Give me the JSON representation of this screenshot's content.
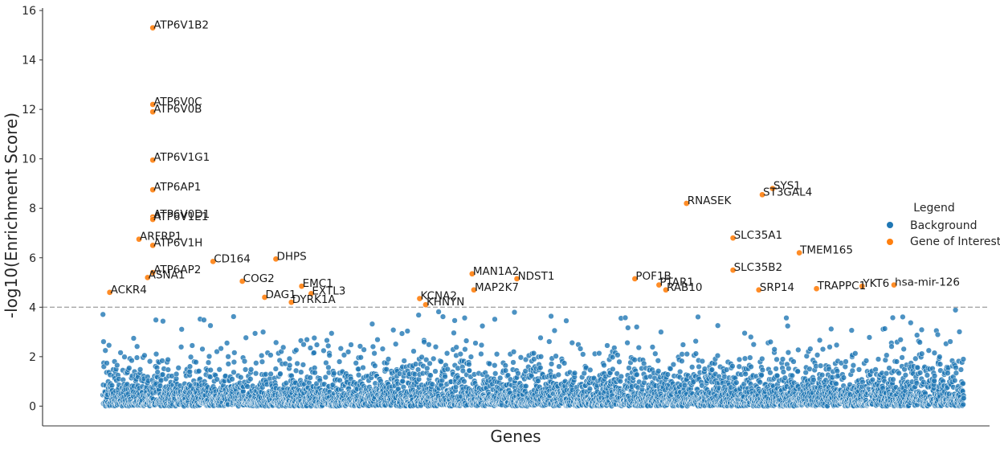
{
  "chart_data": {
    "type": "scatter",
    "title": "",
    "xlabel": "Genes",
    "ylabel": "-log10(Enrichment Score)",
    "ylim": [
      -0.8,
      16.1
    ],
    "xlim": [
      -0.07,
      1.03
    ],
    "yticks": [
      0,
      2,
      4,
      6,
      8,
      10,
      12,
      14,
      16
    ],
    "x_ticks_shown": false,
    "grid": false,
    "threshold": 4,
    "legend": {
      "title": "Legend",
      "placement": "right",
      "entries": [
        {
          "label": "Background",
          "color": "#1f77b4"
        },
        {
          "label": "Gene of Interest",
          "color": "#ff7f0e"
        }
      ]
    },
    "background": {
      "name": "Background",
      "color": "#1f77b4",
      "count_approx": 5000,
      "y_range": [
        0,
        4
      ],
      "x_range": [
        0,
        1
      ]
    },
    "series": [
      {
        "name": "Gene of Interest",
        "color": "#ff7f0e",
        "points": [
          {
            "label": "ATP6V1B2",
            "x": 0.058,
            "y": 15.3
          },
          {
            "label": "ATP6V0C",
            "x": 0.058,
            "y": 12.2
          },
          {
            "label": "ATP6V0B",
            "x": 0.058,
            "y": 11.9
          },
          {
            "label": "ATP6V1G1",
            "x": 0.058,
            "y": 9.95
          },
          {
            "label": "ATP6AP1",
            "x": 0.058,
            "y": 8.75
          },
          {
            "label": "ATP6V0D1",
            "x": 0.058,
            "y": 7.65
          },
          {
            "label": "ATP6V1E1",
            "x": 0.058,
            "y": 7.55
          },
          {
            "label": "ARFRP1",
            "x": 0.042,
            "y": 6.75
          },
          {
            "label": "ATP6V1H",
            "x": 0.058,
            "y": 6.5
          },
          {
            "label": "ATP6AP2",
            "x": 0.058,
            "y": 5.4
          },
          {
            "label": "ASNA1",
            "x": 0.052,
            "y": 5.2
          },
          {
            "label": "ACKR4",
            "x": 0.008,
            "y": 4.6
          },
          {
            "label": "CD164",
            "x": 0.128,
            "y": 5.85
          },
          {
            "label": "COG2",
            "x": 0.162,
            "y": 5.05
          },
          {
            "label": "DHPS",
            "x": 0.201,
            "y": 5.95
          },
          {
            "label": "DAG1",
            "x": 0.188,
            "y": 4.4
          },
          {
            "label": "EMC1",
            "x": 0.231,
            "y": 4.85
          },
          {
            "label": "EXTL3",
            "x": 0.242,
            "y": 4.55
          },
          {
            "label": "DYRK1A",
            "x": 0.219,
            "y": 4.2
          },
          {
            "label": "KCNA2",
            "x": 0.368,
            "y": 4.35
          },
          {
            "label": "KHNYN",
            "x": 0.375,
            "y": 4.1
          },
          {
            "label": "MAN1A2",
            "x": 0.429,
            "y": 5.35
          },
          {
            "label": "MAP2K7",
            "x": 0.431,
            "y": 4.7
          },
          {
            "label": "NDST1",
            "x": 0.481,
            "y": 5.15
          },
          {
            "label": "POF1B",
            "x": 0.618,
            "y": 5.15
          },
          {
            "label": "PTAR1",
            "x": 0.646,
            "y": 4.9
          },
          {
            "label": "RAB10",
            "x": 0.654,
            "y": 4.7
          },
          {
            "label": "RNASEK",
            "x": 0.678,
            "y": 8.2
          },
          {
            "label": "SYS1",
            "x": 0.778,
            "y": 8.8
          },
          {
            "label": "ST3GAL4",
            "x": 0.766,
            "y": 8.55
          },
          {
            "label": "SLC35A1",
            "x": 0.732,
            "y": 6.8
          },
          {
            "label": "SLC35B2",
            "x": 0.732,
            "y": 5.5
          },
          {
            "label": "SRP14",
            "x": 0.762,
            "y": 4.7
          },
          {
            "label": "TMEM165",
            "x": 0.809,
            "y": 6.2
          },
          {
            "label": "TRAPPC1",
            "x": 0.829,
            "y": 4.75
          },
          {
            "label": "YKT6",
            "x": 0.882,
            "y": 4.85
          },
          {
            "label": "hsa-mir-126",
            "x": 0.919,
            "y": 4.9
          }
        ]
      }
    ]
  }
}
